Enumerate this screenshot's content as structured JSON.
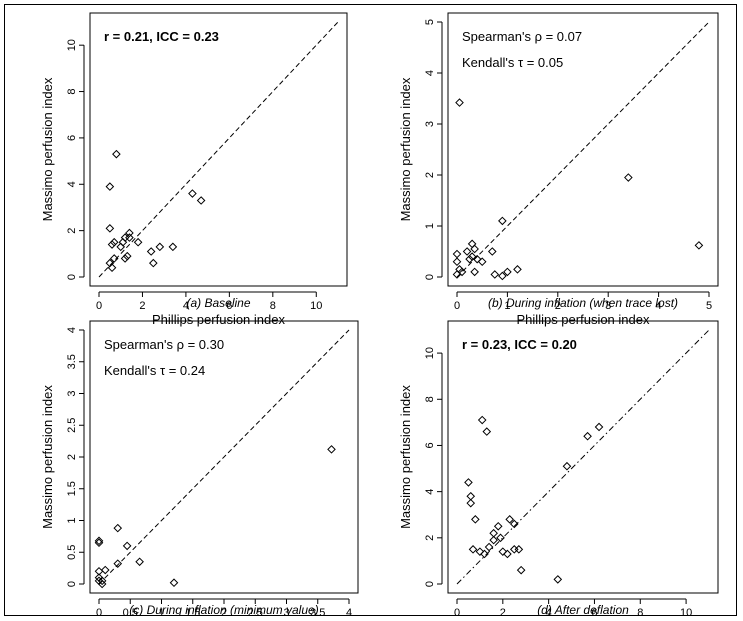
{
  "chart_data": [
    {
      "type": "scatter",
      "caption": "(a) Baseline",
      "xlabel": "Phillips perfusion index",
      "ylabel": "Massimo perfusion index",
      "xlim": [
        0,
        11
      ],
      "ylim": [
        0,
        11
      ],
      "xticks": [
        0,
        2,
        4,
        6,
        8,
        10
      ],
      "yticks": [
        0,
        2,
        4,
        6,
        8,
        10
      ],
      "annotations": [
        {
          "text": "r = 0.21, ICC = 0.23",
          "bold": true
        }
      ],
      "reference_line": {
        "type": "identity",
        "style": "dashed"
      },
      "x": [
        0.5,
        0.5,
        0.6,
        0.7,
        0.8,
        0.7,
        0.5,
        0.6,
        1.0,
        1.1,
        1.2,
        1.3,
        1.4,
        1.2,
        1.4,
        1.8,
        2.4,
        2.5,
        2.8,
        3.4,
        4.3,
        4.7
      ],
      "y": [
        3.9,
        2.1,
        1.4,
        1.5,
        5.3,
        0.8,
        0.6,
        0.4,
        1.3,
        1.5,
        0.8,
        0.9,
        1.7,
        1.7,
        1.9,
        1.5,
        1.1,
        0.6,
        1.3,
        1.3,
        3.6,
        3.3
      ]
    },
    {
      "type": "scatter",
      "caption": "(b) During inflation (when trace lost)",
      "xlabel": "Phillips perfusion index",
      "ylabel": "Massimo perfusion index",
      "xlim": [
        0,
        5
      ],
      "ylim": [
        0,
        5
      ],
      "xticks": [
        0,
        1,
        2,
        3,
        4,
        5
      ],
      "yticks": [
        0,
        1,
        2,
        3,
        4,
        5
      ],
      "annotations": [
        {
          "text": "Spearman's ρ = 0.07",
          "bold": false
        },
        {
          "text": "Kendall's τ = 0.05",
          "bold": false
        }
      ],
      "reference_line": {
        "type": "identity",
        "style": "dashed"
      },
      "x": [
        0.05,
        0.0,
        0.0,
        0.05,
        0.1,
        0.0,
        0.2,
        0.3,
        0.25,
        0.35,
        0.4,
        0.3,
        0.5,
        0.35,
        0.7,
        0.9,
        1.0,
        0.75,
        0.9,
        1.2,
        3.4,
        4.8
      ],
      "y": [
        3.42,
        0.45,
        0.3,
        0.15,
        0.1,
        0.05,
        0.5,
        0.65,
        0.35,
        0.55,
        0.35,
        0.4,
        0.3,
        0.1,
        0.5,
        1.1,
        0.1,
        0.05,
        0.02,
        0.15,
        1.95,
        0.62
      ]
    },
    {
      "type": "scatter",
      "caption": "(c) During inflation (minimum value)",
      "xlabel": "Phillips perfusion index",
      "ylabel": "Massimo perfusion index",
      "xlim": [
        0,
        4
      ],
      "ylim": [
        0,
        4
      ],
      "xticks": [
        0,
        0.5,
        1,
        1.5,
        2,
        2.5,
        3,
        3.5,
        4
      ],
      "yticks": [
        0,
        0.5,
        1,
        1.5,
        2,
        2.5,
        3,
        3.5,
        4
      ],
      "annotations": [
        {
          "text": "Spearman's ρ = 0.30",
          "bold": false
        },
        {
          "text": "Kendall's τ = 0.24",
          "bold": false
        }
      ],
      "reference_line": {
        "type": "identity",
        "style": "dashed"
      },
      "x": [
        0.0,
        0.0,
        0.0,
        0.0,
        0.0,
        0.05,
        0.1,
        0.05,
        0.3,
        0.3,
        0.45,
        0.65,
        1.2,
        3.72
      ],
      "y": [
        0.68,
        0.65,
        0.2,
        0.1,
        0.05,
        0.0,
        0.22,
        0.05,
        0.88,
        0.32,
        0.6,
        0.35,
        0.02,
        2.12
      ]
    },
    {
      "type": "scatter",
      "caption": "(d) After deflation",
      "xlabel": "Phillips perfusion index",
      "ylabel": "Massimo perfusion index",
      "xlim": [
        0,
        11
      ],
      "ylim": [
        0,
        11
      ],
      "xticks": [
        0,
        2,
        4,
        6,
        8,
        10
      ],
      "yticks": [
        0,
        2,
        4,
        6,
        8,
        10
      ],
      "annotations": [
        {
          "text": "r = 0.23, ICC = 0.20",
          "bold": true
        }
      ],
      "reference_line": {
        "type": "identity",
        "style": "dashdot"
      },
      "x": [
        0.5,
        0.6,
        0.6,
        0.7,
        0.8,
        1.1,
        1.3,
        1.0,
        1.2,
        1.4,
        1.6,
        1.6,
        1.8,
        1.9,
        2.0,
        2.2,
        2.3,
        2.5,
        2.5,
        2.7,
        2.8,
        4.4,
        4.8,
        5.7,
        6.2
      ],
      "y": [
        4.4,
        3.8,
        3.5,
        1.5,
        2.8,
        7.1,
        6.6,
        1.4,
        1.3,
        1.6,
        2.2,
        1.9,
        2.5,
        2.0,
        1.4,
        1.3,
        2.8,
        1.5,
        2.6,
        1.5,
        0.6,
        0.2,
        5.1,
        6.4,
        6.8
      ]
    }
  ]
}
